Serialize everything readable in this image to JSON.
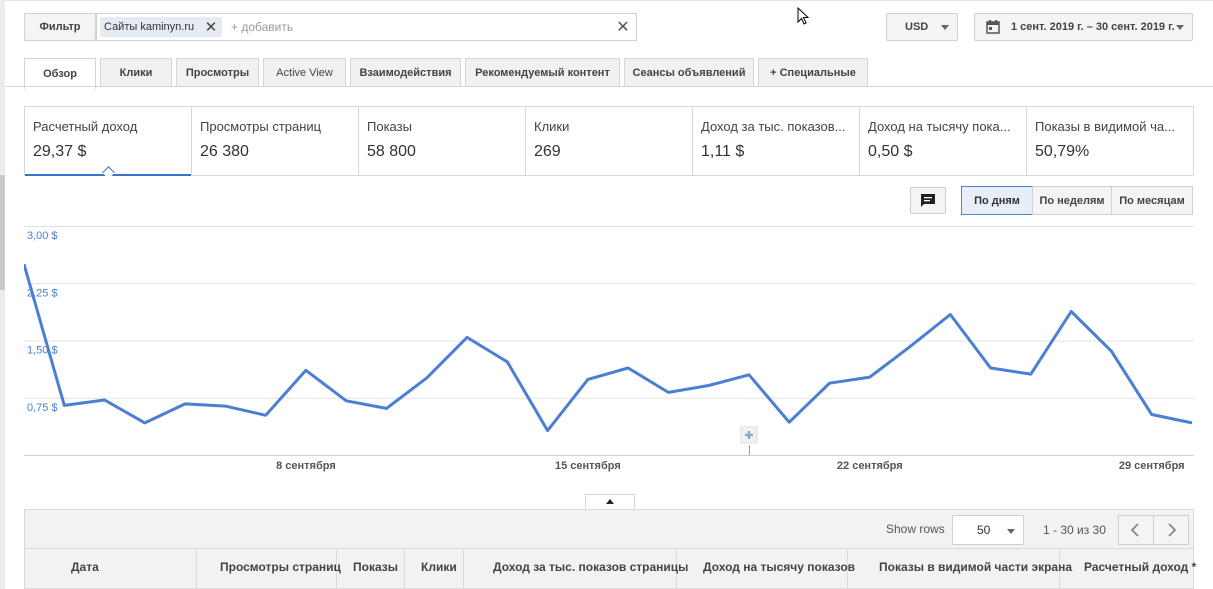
{
  "filter": {
    "label": "Фильтр",
    "chip": "Сайты kaminyn.ru",
    "placeholder": "+ добавить"
  },
  "currency": "USD",
  "date_range": "1 сент. 2019 г. – 30 сент. 2019 г.",
  "tabs": [
    {
      "label": "Обзор",
      "active": true
    },
    {
      "label": "Клики"
    },
    {
      "label": "Просмотры"
    },
    {
      "label": "Active View"
    },
    {
      "label": "Взаимодействия"
    },
    {
      "label": "Рекомендуемый контент"
    },
    {
      "label": "Сеансы объявлений"
    },
    {
      "label": "+  Специальные"
    }
  ],
  "metrics": [
    {
      "label": "Расчетный доход",
      "value": "29,37 $"
    },
    {
      "label": "Просмотры страниц",
      "value": "26 380"
    },
    {
      "label": "Показы",
      "value": "58 800"
    },
    {
      "label": "Клики",
      "value": "269"
    },
    {
      "label": "Доход за тыс. показов...",
      "value": "1,11 $"
    },
    {
      "label": "Доход на тысячу пока...",
      "value": "0,50 $"
    },
    {
      "label": "Показы в видимой ча...",
      "value": "50,79%"
    }
  ],
  "granularity": {
    "day": "По дням",
    "week": "По неделям",
    "month": "По месяцам",
    "selected": "day"
  },
  "chart_data": {
    "type": "line",
    "x": [
      1,
      2,
      3,
      4,
      5,
      6,
      7,
      8,
      9,
      10,
      11,
      12,
      13,
      14,
      15,
      16,
      17,
      18,
      19,
      20,
      21,
      22,
      23,
      24,
      25,
      26,
      27,
      28,
      29,
      30
    ],
    "series": [
      {
        "values": [
          2.5,
          0.65,
          0.72,
          0.42,
          0.67,
          0.64,
          0.52,
          1.11,
          0.71,
          0.61,
          1.01,
          1.54,
          1.22,
          0.32,
          0.99,
          1.14,
          0.82,
          0.91,
          1.05,
          0.43,
          0.94,
          1.02,
          1.42,
          1.84,
          1.14,
          1.06,
          1.88,
          1.36,
          0.53,
          0.42
        ],
        "color": "#4a7fd4"
      }
    ],
    "y_ticks": [
      "3,00 $",
      "2,25 $",
      "1,50 $",
      "0,75 $"
    ],
    "y_tick_values": [
      3.0,
      2.25,
      1.5,
      0.75
    ],
    "x_ticks": [
      {
        "x": 8,
        "label": "8 сентября"
      },
      {
        "x": 15,
        "label": "15 сентября"
      },
      {
        "x": 22,
        "label": "22 сентября"
      },
      {
        "x": 29,
        "label": "29 сентября"
      }
    ],
    "ylim": [
      0,
      3.0
    ],
    "xlim": [
      1,
      30
    ],
    "grid": true,
    "annotation_marker_x": 19
  },
  "table": {
    "show_rows_label": "Show rows",
    "rows_value": "50",
    "page_range": "1 - 30 из 30",
    "columns": [
      "Дата",
      "Просмотры страниц",
      "Показы",
      "Клики",
      "Доход за тыс. показов страницы",
      "Доход на тысячу показов",
      "Показы в видимой части экрана",
      "Расчетный доход *"
    ]
  }
}
